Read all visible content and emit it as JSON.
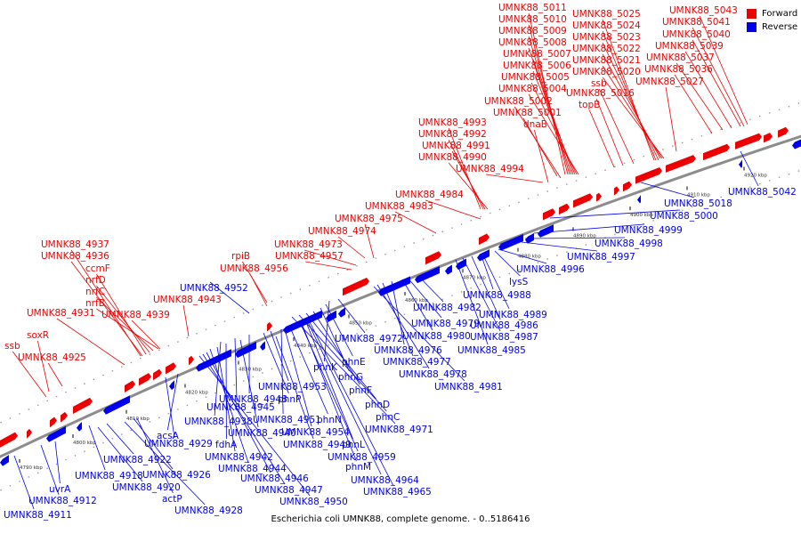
{
  "colors": {
    "forward": "#ee0000",
    "reverse": "#0000ee",
    "backbone": "#8c8c8c",
    "dot": "#9a9a9a"
  },
  "legend": {
    "forward_label": "Forward",
    "reverse_label": "Reverse"
  },
  "caption": "Escherichia coli UMNK88, complete genome. - 0..5186416",
  "ticks": [
    "4790 kbp",
    "4800 kbp",
    "4810 kbp",
    "4820 kbp",
    "4830 kbp",
    "4840 kbp",
    "4850 kbp",
    "4860 kbp",
    "4870 kbp",
    "4880 kbp",
    "4890 kbp",
    "4900 kbp",
    "4910 kbp",
    "4920 kbp"
  ],
  "forward_labels": [
    "UMNK88_5011",
    "UMNK88_5010",
    "UMNK88_5009",
    "UMNK88_5008",
    "UMNK88_5007",
    "UMNK88_5006",
    "UMNK88_5005",
    "UMNK88_5004",
    "UMNK88_5002",
    "UMNK88_5001",
    "dnaB",
    "UMNK88_4993",
    "UMNK88_4992",
    "UMNK88_4991",
    "UMNK88_4990",
    "UMNK88_4994",
    "UMNK88_5025",
    "UMNK88_5024",
    "UMNK88_5023",
    "UMNK88_5022",
    "UMNK88_5021",
    "UMNK88_5020",
    "UMNK88_5016",
    "topB",
    "ssb",
    "UMNK88_5027",
    "UMNK88_5043",
    "UMNK88_5041",
    "UMNK88_5040",
    "UMNK88_5039",
    "UMNK88_5037",
    "UMNK88_5036",
    "UMNK88_4984",
    "UMNK88_4983",
    "UMNK88_4975",
    "UMNK88_4974",
    "UMNK88_4973",
    "UMNK88_4957",
    "rpiB",
    "UMNK88_4956",
    "UMNK88_4943",
    "UMNK88_4937",
    "UMNK88_4936",
    "ccmF",
    "nrfD",
    "nrfC",
    "nrfB",
    "UMNK88_4931",
    "UMNK88_4939",
    "soxR",
    "ssb",
    "UMNK88_4925"
  ],
  "reverse_labels": [
    "UMNK88_5042",
    "UMNK88_5018",
    "UMNK88_5000",
    "UMNK88_4999",
    "UMNK88_4998",
    "UMNK88_4997",
    "UMNK88_4996",
    "lysS",
    "UMNK88_4988",
    "UMNK88_4989",
    "UMNK88_4986",
    "UMNK88_4987",
    "UMNK88_4985",
    "UMNK88_4982",
    "UMNK88_4979",
    "UMNK88_4980",
    "UMNK88_4976",
    "UMNK88_4977",
    "UMNK88_4978",
    "UMNK88_4981",
    "UMNK88_4972",
    "phnK",
    "phnE",
    "phnG",
    "phnF",
    "phnD",
    "phnC",
    "UMNK88_4971",
    "UMNK88_4952",
    "UMNK88_4953",
    "phnP",
    "UMNK88_4948",
    "UMNK88_4945",
    "UMNK88_4938",
    "UMNK88_4951",
    "phnN",
    "UMNK88_4954",
    "UMNK88_4940",
    "UMNK88_4949",
    "fdhA",
    "phnL",
    "UMNK88_4959",
    "UMNK88_4942",
    "UMNK88_4944",
    "phnM",
    "UMNK88_4946",
    "UMNK88_4964",
    "UMNK88_4947",
    "UMNK88_4965",
    "UMNK88_4950",
    "acsA",
    "UMNK88_4929",
    "UMNK88_4926",
    "UMNK88_4922",
    "UMNK88_4918",
    "UMNK88_4920",
    "actP",
    "UMNK88_4928",
    "UMNK88_4912",
    "uvrA",
    "UMNK88_4911"
  ]
}
